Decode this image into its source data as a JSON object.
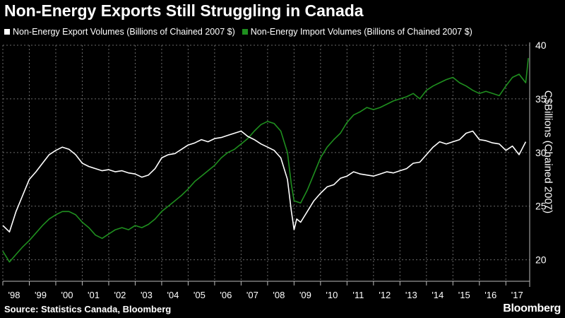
{
  "title": "Non-Energy Exports Still Struggling in Canada",
  "source": "Source: Statistics Canada, Bloomberg",
  "brand": "Bloomberg",
  "colors": {
    "background": "#000000",
    "exports": "#ffffff",
    "imports": "#1f8f1f",
    "grid": "#6a6a6a"
  },
  "chart_data": {
    "type": "line",
    "title": "Non-Energy Exports Still Struggling in Canada",
    "ylabel": "C$Billions (Chained 2007)",
    "xlabel": "",
    "ylim": [
      18,
      40
    ],
    "yticks": [
      20,
      25,
      30,
      35,
      40
    ],
    "xlim": [
      1998.0,
      2017.9
    ],
    "xtick_labels": [
      "'98",
      "'99",
      "'00",
      "'01",
      "'02",
      "'03",
      "'04",
      "'05",
      "'06",
      "'07",
      "'08",
      "'09",
      "'10",
      "'11",
      "'12",
      "'13",
      "'14",
      "'15",
      "'16",
      "'17"
    ],
    "grid": true,
    "legend_position": "top-left",
    "series": [
      {
        "name": "Non-Energy Export Volumes (Billions of Chained 2007 $)",
        "color": "#ffffff",
        "x": [
          1998.0,
          1998.25,
          1998.5,
          1998.75,
          1999.0,
          1999.25,
          1999.5,
          1999.75,
          2000.0,
          2000.25,
          2000.5,
          2000.75,
          2001.0,
          2001.25,
          2001.5,
          2001.75,
          2002.0,
          2002.25,
          2002.5,
          2002.75,
          2003.0,
          2003.25,
          2003.5,
          2003.75,
          2004.0,
          2004.25,
          2004.5,
          2004.75,
          2005.0,
          2005.25,
          2005.5,
          2005.75,
          2006.0,
          2006.25,
          2006.5,
          2006.75,
          2007.0,
          2007.25,
          2007.5,
          2007.75,
          2008.0,
          2008.25,
          2008.5,
          2008.75,
          2008.9,
          2009.0,
          2009.1,
          2009.25,
          2009.5,
          2009.75,
          2010.0,
          2010.25,
          2010.5,
          2010.75,
          2011.0,
          2011.25,
          2011.5,
          2011.75,
          2012.0,
          2012.25,
          2012.5,
          2012.75,
          2013.0,
          2013.25,
          2013.5,
          2013.75,
          2014.0,
          2014.25,
          2014.5,
          2014.75,
          2015.0,
          2015.25,
          2015.5,
          2015.75,
          2016.0,
          2016.25,
          2016.5,
          2016.75,
          2017.0,
          2017.25,
          2017.5,
          2017.75
        ],
        "values": [
          23.2,
          22.6,
          24.5,
          26.0,
          27.5,
          28.2,
          29.0,
          29.8,
          30.2,
          30.5,
          30.3,
          29.8,
          29.0,
          28.7,
          28.5,
          28.3,
          28.4,
          28.2,
          28.3,
          28.1,
          28.0,
          27.7,
          27.9,
          28.5,
          29.5,
          29.8,
          29.9,
          30.3,
          30.7,
          30.9,
          31.2,
          31.0,
          31.3,
          31.4,
          31.6,
          31.8,
          32.0,
          31.5,
          31.2,
          30.8,
          30.5,
          30.2,
          29.5,
          27.5,
          24.5,
          22.8,
          23.8,
          23.5,
          24.5,
          25.5,
          26.2,
          26.8,
          27.0,
          27.6,
          27.8,
          28.2,
          28.0,
          27.9,
          27.8,
          28.0,
          28.2,
          28.1,
          28.3,
          28.5,
          29.0,
          29.1,
          29.8,
          30.5,
          31.0,
          30.8,
          31.0,
          31.2,
          31.8,
          32.0,
          31.2,
          31.1,
          30.9,
          30.8,
          30.2,
          30.6,
          29.8,
          31.0
        ]
      },
      {
        "name": "Non-Energy Import Volumes (Billions of Chained 2007 $)",
        "color": "#1f8f1f",
        "x": [
          1998.0,
          1998.25,
          1998.5,
          1998.75,
          1999.0,
          1999.25,
          1999.5,
          1999.75,
          2000.0,
          2000.25,
          2000.5,
          2000.75,
          2001.0,
          2001.25,
          2001.5,
          2001.75,
          2002.0,
          2002.25,
          2002.5,
          2002.75,
          2003.0,
          2003.25,
          2003.5,
          2003.75,
          2004.0,
          2004.25,
          2004.5,
          2004.75,
          2005.0,
          2005.25,
          2005.5,
          2005.75,
          2006.0,
          2006.25,
          2006.5,
          2006.75,
          2007.0,
          2007.25,
          2007.5,
          2007.75,
          2008.0,
          2008.25,
          2008.5,
          2008.75,
          2008.9,
          2009.0,
          2009.25,
          2009.5,
          2009.75,
          2010.0,
          2010.25,
          2010.5,
          2010.75,
          2011.0,
          2011.25,
          2011.5,
          2011.75,
          2012.0,
          2012.25,
          2012.5,
          2012.75,
          2013.0,
          2013.25,
          2013.5,
          2013.75,
          2014.0,
          2014.25,
          2014.5,
          2014.75,
          2015.0,
          2015.25,
          2015.5,
          2015.75,
          2016.0,
          2016.25,
          2016.5,
          2016.75,
          2017.0,
          2017.25,
          2017.5,
          2017.75,
          2017.85
        ],
        "values": [
          20.8,
          19.8,
          20.5,
          21.2,
          21.8,
          22.5,
          23.2,
          23.8,
          24.2,
          24.5,
          24.5,
          24.2,
          23.5,
          23.0,
          22.3,
          22.0,
          22.4,
          22.8,
          23.0,
          22.8,
          23.2,
          23.0,
          23.3,
          23.8,
          24.5,
          25.0,
          25.5,
          26.0,
          26.6,
          27.3,
          27.8,
          28.3,
          28.8,
          29.5,
          30.0,
          30.3,
          30.8,
          31.3,
          32.0,
          32.6,
          32.9,
          32.7,
          32.0,
          30.0,
          27.0,
          25.5,
          25.3,
          26.5,
          28.0,
          29.5,
          30.5,
          31.2,
          31.8,
          32.8,
          33.5,
          33.8,
          34.2,
          34.0,
          34.2,
          34.5,
          34.8,
          35.0,
          35.2,
          35.5,
          35.0,
          35.8,
          36.2,
          36.5,
          36.8,
          37.0,
          36.5,
          36.2,
          35.8,
          35.5,
          35.7,
          35.5,
          35.3,
          36.2,
          37.0,
          37.3,
          36.5,
          38.8
        ]
      }
    ]
  }
}
